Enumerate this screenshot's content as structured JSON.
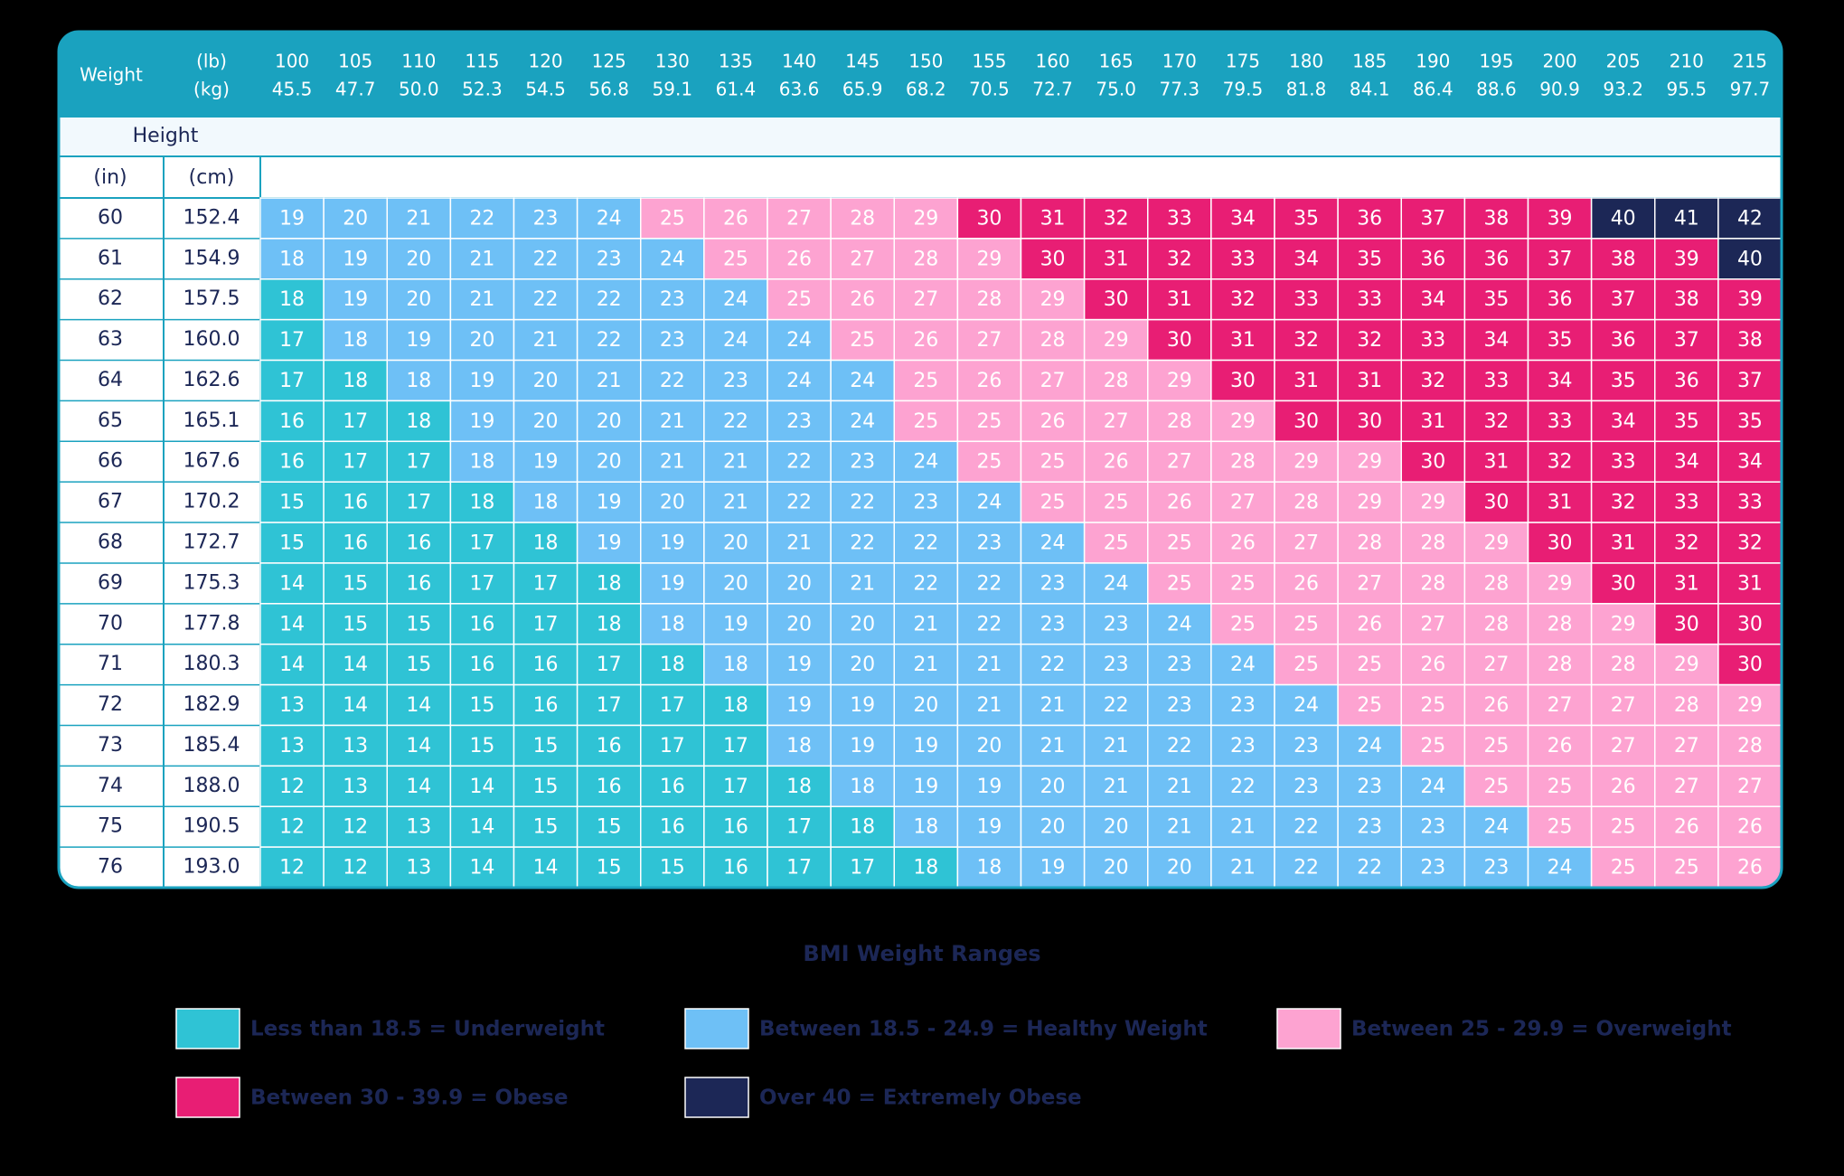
{
  "header": {
    "weight_label": "Weight",
    "lb_unit": "(lb)",
    "kg_unit": "(kg)",
    "height_label": "Height",
    "in_unit": "(in)",
    "cm_unit": "(cm)"
  },
  "weights_lb": [
    100,
    105,
    110,
    115,
    120,
    125,
    130,
    135,
    140,
    145,
    150,
    155,
    160,
    165,
    170,
    175,
    180,
    185,
    190,
    195,
    200,
    205,
    210,
    215
  ],
  "weights_kg": [
    "45.5",
    "47.7",
    "50.0",
    "52.3",
    "54.5",
    "56.8",
    "59.1",
    "61.4",
    "63.6",
    "65.9",
    "68.2",
    "70.5",
    "72.7",
    "75.0",
    "77.3",
    "79.5",
    "81.8",
    "84.1",
    "86.4",
    "88.6",
    "90.9",
    "93.2",
    "95.5",
    "97.7"
  ],
  "rows": [
    {
      "in": 60,
      "cm": "152.4",
      "bmi": [
        19,
        20,
        21,
        22,
        23,
        24,
        25,
        26,
        27,
        28,
        29,
        30,
        31,
        32,
        33,
        34,
        35,
        36,
        37,
        38,
        39,
        40,
        41,
        42
      ],
      "category": [
        1,
        1,
        1,
        1,
        1,
        1,
        2,
        2,
        2,
        2,
        2,
        3,
        3,
        3,
        3,
        3,
        3,
        3,
        3,
        3,
        3,
        4,
        4,
        4
      ]
    },
    {
      "in": 61,
      "cm": "154.9",
      "bmi": [
        18,
        19,
        20,
        21,
        22,
        23,
        24,
        25,
        26,
        27,
        28,
        29,
        30,
        31,
        32,
        33,
        34,
        35,
        36,
        36,
        37,
        38,
        39,
        40
      ],
      "category": [
        1,
        1,
        1,
        1,
        1,
        1,
        1,
        2,
        2,
        2,
        2,
        2,
        3,
        3,
        3,
        3,
        3,
        3,
        3,
        3,
        3,
        3,
        3,
        4
      ]
    },
    {
      "in": 62,
      "cm": "157.5",
      "bmi": [
        18,
        19,
        20,
        21,
        22,
        22,
        23,
        24,
        25,
        26,
        27,
        28,
        29,
        30,
        31,
        32,
        33,
        33,
        34,
        35,
        36,
        37,
        38,
        39
      ],
      "category": [
        0,
        1,
        1,
        1,
        1,
        1,
        1,
        1,
        2,
        2,
        2,
        2,
        2,
        3,
        3,
        3,
        3,
        3,
        3,
        3,
        3,
        3,
        3,
        3
      ]
    },
    {
      "in": 63,
      "cm": "160.0",
      "bmi": [
        17,
        18,
        19,
        20,
        21,
        22,
        23,
        24,
        24,
        25,
        26,
        27,
        28,
        29,
        30,
        31,
        32,
        32,
        33,
        34,
        35,
        36,
        37,
        38
      ],
      "category": [
        0,
        1,
        1,
        1,
        1,
        1,
        1,
        1,
        1,
        2,
        2,
        2,
        2,
        2,
        3,
        3,
        3,
        3,
        3,
        3,
        3,
        3,
        3,
        3
      ]
    },
    {
      "in": 64,
      "cm": "162.6",
      "bmi": [
        17,
        18,
        18,
        19,
        20,
        21,
        22,
        23,
        24,
        24,
        25,
        26,
        27,
        28,
        29,
        30,
        31,
        31,
        32,
        33,
        34,
        35,
        36,
        37
      ],
      "category": [
        0,
        0,
        1,
        1,
        1,
        1,
        1,
        1,
        1,
        1,
        2,
        2,
        2,
        2,
        2,
        3,
        3,
        3,
        3,
        3,
        3,
        3,
        3,
        3
      ]
    },
    {
      "in": 65,
      "cm": "165.1",
      "bmi": [
        16,
        17,
        18,
        19,
        20,
        20,
        21,
        22,
        23,
        24,
        25,
        25,
        26,
        27,
        28,
        29,
        30,
        30,
        31,
        32,
        33,
        34,
        35,
        35
      ],
      "category": [
        0,
        0,
        0,
        1,
        1,
        1,
        1,
        1,
        1,
        1,
        2,
        2,
        2,
        2,
        2,
        2,
        3,
        3,
        3,
        3,
        3,
        3,
        3,
        3
      ]
    },
    {
      "in": 66,
      "cm": "167.6",
      "bmi": [
        16,
        17,
        17,
        18,
        19,
        20,
        21,
        21,
        22,
        23,
        24,
        25,
        25,
        26,
        27,
        28,
        29,
        29,
        30,
        31,
        32,
        33,
        34,
        34
      ],
      "category": [
        0,
        0,
        0,
        1,
        1,
        1,
        1,
        1,
        1,
        1,
        1,
        2,
        2,
        2,
        2,
        2,
        2,
        2,
        3,
        3,
        3,
        3,
        3,
        3
      ]
    },
    {
      "in": 67,
      "cm": "170.2",
      "bmi": [
        15,
        16,
        17,
        18,
        18,
        19,
        20,
        21,
        22,
        22,
        23,
        24,
        25,
        25,
        26,
        27,
        28,
        29,
        29,
        30,
        31,
        32,
        33,
        33
      ],
      "category": [
        0,
        0,
        0,
        0,
        1,
        1,
        1,
        1,
        1,
        1,
        1,
        1,
        2,
        2,
        2,
        2,
        2,
        2,
        2,
        3,
        3,
        3,
        3,
        3
      ]
    },
    {
      "in": 68,
      "cm": "172.7",
      "bmi": [
        15,
        16,
        16,
        17,
        18,
        19,
        19,
        20,
        21,
        22,
        22,
        23,
        24,
        25,
        25,
        26,
        27,
        28,
        28,
        29,
        30,
        31,
        32,
        32
      ],
      "category": [
        0,
        0,
        0,
        0,
        0,
        1,
        1,
        1,
        1,
        1,
        1,
        1,
        1,
        2,
        2,
        2,
        2,
        2,
        2,
        2,
        3,
        3,
        3,
        3
      ]
    },
    {
      "in": 69,
      "cm": "175.3",
      "bmi": [
        14,
        15,
        16,
        17,
        17,
        18,
        19,
        20,
        20,
        21,
        22,
        22,
        23,
        24,
        25,
        25,
        26,
        27,
        28,
        28,
        29,
        30,
        31,
        31
      ],
      "category": [
        0,
        0,
        0,
        0,
        0,
        0,
        1,
        1,
        1,
        1,
        1,
        1,
        1,
        1,
        2,
        2,
        2,
        2,
        2,
        2,
        2,
        3,
        3,
        3
      ]
    },
    {
      "in": 70,
      "cm": "177.8",
      "bmi": [
        14,
        15,
        15,
        16,
        17,
        18,
        18,
        19,
        20,
        20,
        21,
        22,
        23,
        23,
        24,
        25,
        25,
        26,
        27,
        28,
        28,
        29,
        30,
        30
      ],
      "category": [
        0,
        0,
        0,
        0,
        0,
        0,
        1,
        1,
        1,
        1,
        1,
        1,
        1,
        1,
        1,
        2,
        2,
        2,
        2,
        2,
        2,
        2,
        3,
        3
      ]
    },
    {
      "in": 71,
      "cm": "180.3",
      "bmi": [
        14,
        14,
        15,
        16,
        16,
        17,
        18,
        18,
        19,
        20,
        21,
        21,
        22,
        23,
        23,
        24,
        25,
        25,
        26,
        27,
        28,
        28,
        29,
        30
      ],
      "category": [
        0,
        0,
        0,
        0,
        0,
        0,
        0,
        1,
        1,
        1,
        1,
        1,
        1,
        1,
        1,
        1,
        2,
        2,
        2,
        2,
        2,
        2,
        2,
        3
      ]
    },
    {
      "in": 72,
      "cm": "182.9",
      "bmi": [
        13,
        14,
        14,
        15,
        16,
        17,
        17,
        18,
        19,
        19,
        20,
        21,
        21,
        22,
        23,
        23,
        24,
        25,
        25,
        26,
        27,
        27,
        28,
        29
      ],
      "category": [
        0,
        0,
        0,
        0,
        0,
        0,
        0,
        0,
        1,
        1,
        1,
        1,
        1,
        1,
        1,
        1,
        1,
        2,
        2,
        2,
        2,
        2,
        2,
        2
      ]
    },
    {
      "in": 73,
      "cm": "185.4",
      "bmi": [
        13,
        13,
        14,
        15,
        15,
        16,
        17,
        17,
        18,
        19,
        19,
        20,
        21,
        21,
        22,
        23,
        23,
        24,
        25,
        25,
        26,
        27,
        27,
        28
      ],
      "category": [
        0,
        0,
        0,
        0,
        0,
        0,
        0,
        0,
        1,
        1,
        1,
        1,
        1,
        1,
        1,
        1,
        1,
        1,
        2,
        2,
        2,
        2,
        2,
        2
      ]
    },
    {
      "in": 74,
      "cm": "188.0",
      "bmi": [
        12,
        13,
        14,
        14,
        15,
        16,
        16,
        17,
        18,
        18,
        19,
        19,
        20,
        21,
        21,
        22,
        23,
        23,
        24,
        25,
        25,
        26,
        27,
        27
      ],
      "category": [
        0,
        0,
        0,
        0,
        0,
        0,
        0,
        0,
        0,
        1,
        1,
        1,
        1,
        1,
        1,
        1,
        1,
        1,
        1,
        2,
        2,
        2,
        2,
        2
      ]
    },
    {
      "in": 75,
      "cm": "190.5",
      "bmi": [
        12,
        12,
        13,
        14,
        15,
        15,
        16,
        16,
        17,
        18,
        18,
        19,
        20,
        20,
        21,
        21,
        22,
        23,
        23,
        24,
        25,
        25,
        26,
        26
      ],
      "category": [
        0,
        0,
        0,
        0,
        0,
        0,
        0,
        0,
        0,
        0,
        1,
        1,
        1,
        1,
        1,
        1,
        1,
        1,
        1,
        1,
        2,
        2,
        2,
        2
      ]
    },
    {
      "in": 76,
      "cm": "193.0",
      "bmi": [
        12,
        12,
        13,
        14,
        14,
        15,
        15,
        16,
        17,
        17,
        18,
        18,
        19,
        20,
        20,
        21,
        22,
        22,
        23,
        23,
        24,
        25,
        25,
        26
      ],
      "category": [
        0,
        0,
        0,
        0,
        0,
        0,
        0,
        0,
        0,
        0,
        0,
        1,
        1,
        1,
        1,
        1,
        1,
        1,
        1,
        1,
        1,
        2,
        2,
        2
      ]
    }
  ],
  "legend": {
    "title": "BMI Weight Ranges",
    "items": [
      {
        "label": "Less than 18.5 = Underweight",
        "color": "#2fc3d5"
      },
      {
        "label": "Between 18.5 - 24.9 = Healthy Weight",
        "color": "#6ec0f6"
      },
      {
        "label": "Between 25 - 29.9 = Overweight",
        "color": "#fda3d1"
      },
      {
        "label": "Between 30 - 39.9 = Obese",
        "color": "#e81e74"
      },
      {
        "label": "Over 40 = Extremely Obese",
        "color": "#1c2756"
      }
    ]
  }
}
